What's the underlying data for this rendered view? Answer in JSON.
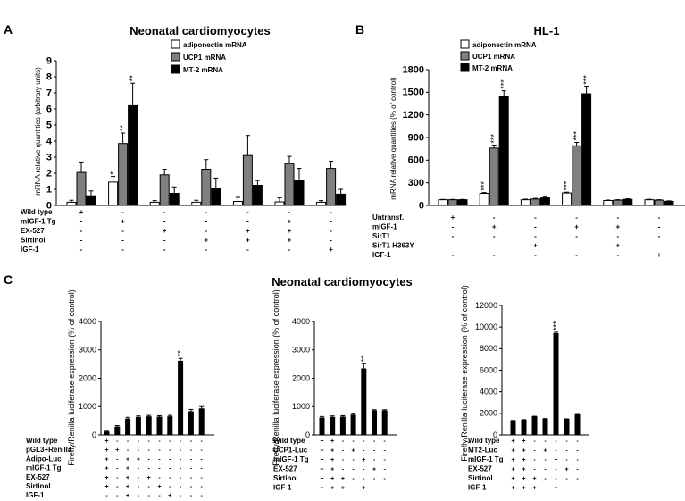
{
  "colors": {
    "white": "#ffffff",
    "grey": "#808080",
    "black": "#000000"
  },
  "chart_data": [
    {
      "id": "A",
      "type": "bar",
      "panel_label": "A",
      "title": "Neonatal cardiomyocytes",
      "ylabel": "mRNA relative quantities (arbitrary units)",
      "ylim": [
        0,
        9
      ],
      "yticks": [
        "0",
        "1",
        "2",
        "3",
        "4",
        "5",
        "6",
        "7",
        "8",
        "9"
      ],
      "legend": [
        "adiponectin mRNA",
        "UCP1 mRNA",
        "MT-2 mRNA"
      ],
      "series": [
        {
          "name": "adiponectin mRNA",
          "color": "white",
          "values": [
            0.2,
            1.45,
            0.2,
            0.2,
            0.25,
            0.22,
            0.2
          ],
          "errors": [
            0.12,
            0.35,
            0.1,
            0.12,
            0.25,
            0.25,
            0.1
          ],
          "stars": [
            "",
            "*",
            "",
            "",
            "",
            "",
            ""
          ]
        },
        {
          "name": "UCP1 mRNA",
          "color": "grey",
          "values": [
            2.05,
            3.85,
            1.9,
            2.25,
            3.1,
            2.6,
            2.3
          ],
          "errors": [
            0.65,
            0.65,
            0.35,
            0.6,
            1.25,
            0.45,
            0.45
          ],
          "stars": [
            "",
            "**",
            "",
            "",
            "",
            "",
            ""
          ]
        },
        {
          "name": "MT-2 mRNA",
          "color": "black",
          "values": [
            0.6,
            6.2,
            0.75,
            1.05,
            1.25,
            1.55,
            0.7
          ],
          "errors": [
            0.3,
            1.4,
            0.4,
            0.65,
            0.3,
            0.75,
            0.3
          ],
          "stars": [
            "",
            "**",
            "",
            "",
            "",
            "",
            ""
          ]
        }
      ],
      "condition_labels": [
        "Wild type",
        "mIGF-1 Tg",
        "EX-527",
        "Sirtinol",
        "IGF-1"
      ],
      "conditions": [
        [
          "+",
          "-",
          "-",
          "-",
          "-"
        ],
        [
          "-",
          "+",
          "-",
          "-",
          "-"
        ],
        [
          "-",
          "-",
          "+",
          "-",
          "-"
        ],
        [
          "-",
          "-",
          "-",
          "+",
          "-"
        ],
        [
          "-",
          "-",
          "+",
          "+",
          "-"
        ],
        [
          "-",
          "+",
          "+",
          "+",
          "-"
        ],
        [
          "-",
          "-",
          "-",
          "-",
          "+"
        ]
      ]
    },
    {
      "id": "B",
      "type": "bar",
      "panel_label": "B",
      "title": "HL-1",
      "ylabel": "mRNA relative quantities (% of control)",
      "ylim": [
        0,
        1800
      ],
      "yticks": [
        "0",
        "300",
        "600",
        "900",
        "1200",
        "1500",
        "1800"
      ],
      "legend": [
        "adiponectin mRNA",
        "UCP1 mRNA",
        "MT-2 mRNA"
      ],
      "series": [
        {
          "name": "adiponectin mRNA",
          "color": "white",
          "values": [
            75,
            160,
            75,
            165,
            65,
            75
          ],
          "errors": [
            5,
            10,
            8,
            10,
            6,
            6
          ],
          "stars": [
            "",
            "***",
            "",
            "***",
            "",
            ""
          ]
        },
        {
          "name": "UCP1 mRNA",
          "color": "grey",
          "values": [
            75,
            760,
            85,
            790,
            70,
            70
          ],
          "errors": [
            5,
            40,
            8,
            45,
            6,
            6
          ],
          "stars": [
            "",
            "***",
            "",
            "***",
            "",
            ""
          ]
        },
        {
          "name": "MT-2 mRNA",
          "color": "black",
          "values": [
            75,
            1440,
            100,
            1480,
            80,
            55
          ],
          "errors": [
            5,
            80,
            10,
            100,
            8,
            6
          ],
          "stars": [
            "",
            "***",
            "",
            "***",
            "",
            ""
          ]
        }
      ],
      "condition_labels": [
        "Untransf.",
        "mIGF-1",
        "SirT1",
        "SirT1 H363Y",
        "IGF-1"
      ],
      "conditions": [
        [
          "+",
          "-",
          "-",
          "-",
          "-"
        ],
        [
          "-",
          "+",
          "-",
          "-",
          "-"
        ],
        [
          "-",
          "-",
          "-",
          "+",
          "-"
        ],
        [
          "-",
          "+",
          "-",
          "-",
          "-"
        ],
        [
          "-",
          "+",
          "-",
          "+",
          "-"
        ],
        [
          "-",
          "-",
          "-",
          "-",
          "+"
        ]
      ]
    },
    {
      "id": "C1",
      "type": "bar",
      "panel_label": "C",
      "ylabel": "Firefly/Renilla luciferase expression (% of control)",
      "ylim": [
        0,
        4000
      ],
      "yticks": [
        "0",
        "1000",
        "2000",
        "3000",
        "4000"
      ],
      "series": [
        {
          "name": "luciferase",
          "color": "black",
          "values": [
            100,
            280,
            560,
            620,
            640,
            630,
            640,
            2600,
            820,
            920
          ],
          "errors": [
            30,
            50,
            60,
            50,
            50,
            50,
            50,
            100,
            80,
            80
          ],
          "stars": [
            "",
            "",
            "",
            "",
            "",
            "",
            "",
            "**",
            "",
            ""
          ]
        }
      ],
      "condition_labels": [
        "Wild type",
        "pGL3+Renilla",
        "Adipo-Luc",
        "mIGF-1 Tg",
        "EX-527",
        "Sirtinol",
        "IGF-1"
      ],
      "conditions": [
        [
          "+",
          "+",
          "+",
          "+",
          "+",
          "+",
          "-",
          "-",
          "-",
          "-"
        ],
        [
          "-",
          "+",
          "-",
          "-",
          "-",
          "-",
          "-",
          "-",
          "-",
          "-"
        ],
        [
          "-",
          "-",
          "+",
          "+",
          "+",
          "+",
          "+",
          "+",
          "+",
          "+"
        ],
        [
          "-",
          "-",
          "+",
          "-",
          "-",
          "-",
          "-",
          "+",
          "+",
          "+"
        ],
        [
          "-",
          "-",
          "-",
          "-",
          "+",
          "-",
          "-",
          "-",
          "-",
          "+"
        ],
        [
          "-",
          "-",
          "-",
          "-",
          "-",
          "+",
          "-",
          "-",
          "+",
          "-"
        ],
        [
          "-",
          "-",
          "-",
          "-",
          "-",
          "-",
          "+",
          "-",
          "-",
          "-"
        ]
      ]
    },
    {
      "id": "C2",
      "type": "bar",
      "title": "Neonatal cardiomyocytes",
      "ylabel": "Firefly/Renilla luciferase expression (% of control)",
      "ylim": [
        0,
        4000
      ],
      "yticks": [
        "0",
        "1000",
        "2000",
        "3000",
        "4000"
      ],
      "series": [
        {
          "name": "luciferase",
          "color": "black",
          "values": [
            600,
            620,
            630,
            700,
            2330,
            850,
            850
          ],
          "errors": [
            50,
            50,
            50,
            50,
            180,
            40,
            40
          ],
          "stars": [
            "",
            "",
            "",
            "",
            "**",
            "",
            ""
          ]
        }
      ],
      "condition_labels": [
        "Wild type",
        "UCP1-Luc",
        "mIGF-1 Tg",
        "EX-527",
        "Sirtinol",
        "IGF-1"
      ],
      "conditions": [
        [
          "+",
          "+",
          "+",
          "+",
          "+",
          "+",
          "+"
        ],
        [
          "+",
          "+",
          "+",
          "+",
          "+",
          "+",
          "+"
        ],
        [
          "-",
          "-",
          "-",
          "-",
          "+",
          "+",
          "+"
        ],
        [
          "-",
          "+",
          "-",
          "-",
          "-",
          "-",
          "+"
        ],
        [
          "-",
          "-",
          "+",
          "-",
          "-",
          "+",
          "-"
        ],
        [
          "-",
          "-",
          "-",
          "+",
          "-",
          "-",
          "-"
        ]
      ]
    },
    {
      "id": "C3",
      "type": "bar",
      "ylabel": "Firefly/Renilla luciferase expression (% of control)",
      "ylim": [
        0,
        12000
      ],
      "yticks": [
        "0",
        "2000",
        "4000",
        "6000",
        "8000",
        "10000",
        "12000"
      ],
      "series": [
        {
          "name": "luciferase",
          "color": "black",
          "values": [
            1300,
            1380,
            1680,
            1480,
            9400,
            1450,
            1850
          ],
          "errors": [
            40,
            40,
            50,
            40,
            120,
            40,
            50
          ],
          "stars": [
            "",
            "",
            "",
            "",
            "***",
            "",
            ""
          ]
        }
      ],
      "condition_labels": [
        "Wild type",
        "MT2-Luc",
        "mIGF-1 Tg",
        "EX-527",
        "Sirtinol",
        "IGF-1"
      ],
      "conditions": [
        [
          "+",
          "+",
          "+",
          "+",
          "+",
          "+",
          "+"
        ],
        [
          "+",
          "+",
          "+",
          "+",
          "+",
          "+",
          "+"
        ],
        [
          "-",
          "-",
          "-",
          "-",
          "+",
          "+",
          "+"
        ],
        [
          "-",
          "+",
          "-",
          "-",
          "-",
          "-",
          "+"
        ],
        [
          "-",
          "-",
          "+",
          "-",
          "-",
          "+",
          "-"
        ],
        [
          "-",
          "-",
          "-",
          "+",
          "-",
          "-",
          "-"
        ]
      ]
    }
  ]
}
